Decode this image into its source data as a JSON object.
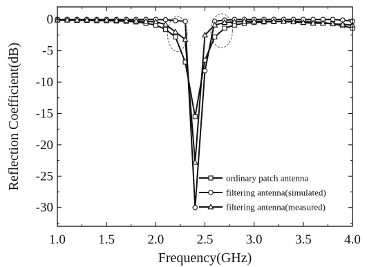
{
  "chart_data": {
    "type": "line",
    "title": "",
    "xlabel": "Frequency(GHz)",
    "ylabel": "Reflection Coefficient(dB)",
    "xlim": [
      1.0,
      4.0
    ],
    "ylim": [
      -33,
      2
    ],
    "x_ticks": [
      1.0,
      1.5,
      2.0,
      2.5,
      3.0,
      3.5,
      4.0
    ],
    "x_tick_labels": [
      "1.0",
      "1.5",
      "2.0",
      "2.5",
      "3.0",
      "3.5",
      "4.0"
    ],
    "y_ticks": [
      0,
      -5,
      -10,
      -15,
      -20,
      -25,
      -30
    ],
    "y_tick_labels": [
      "0",
      "-5",
      "-10",
      "-15",
      "-20",
      "-25",
      "-30"
    ],
    "grid": false,
    "legend_position": "bottom-right",
    "series": [
      {
        "name": "ordinary patch antenna",
        "marker": "square",
        "x": [
          1.0,
          1.1,
          1.2,
          1.3,
          1.4,
          1.5,
          1.6,
          1.7,
          1.8,
          1.9,
          2.0,
          2.1,
          2.2,
          2.3,
          2.4,
          2.5,
          2.6,
          2.7,
          2.8,
          2.9,
          3.0,
          3.1,
          3.2,
          3.3,
          3.4,
          3.5,
          3.6,
          3.7,
          3.8,
          3.9,
          4.0
        ],
        "y": [
          -0.1,
          -0.1,
          -0.15,
          -0.15,
          -0.2,
          -0.2,
          -0.25,
          -0.3,
          -0.4,
          -0.6,
          -0.9,
          -1.6,
          -2.8,
          -6.8,
          -15.5,
          -6.5,
          -2.8,
          -1.4,
          -0.9,
          -0.6,
          -0.5,
          -0.4,
          -0.35,
          -0.3,
          -0.3,
          -0.35,
          -0.4,
          -0.5,
          -0.7,
          -1.0,
          -1.4
        ]
      },
      {
        "name": "filtering antenna(simulated)",
        "marker": "circle",
        "x": [
          1.0,
          1.1,
          1.2,
          1.3,
          1.4,
          1.5,
          1.6,
          1.7,
          1.8,
          1.9,
          2.0,
          2.1,
          2.2,
          2.3,
          2.4,
          2.5,
          2.6,
          2.7,
          2.8,
          2.9,
          3.0,
          3.1,
          3.2,
          3.3,
          3.4,
          3.5,
          3.6,
          3.7,
          3.8,
          3.9,
          4.0
        ],
        "y": [
          0.0,
          0.0,
          0.0,
          0.0,
          0.0,
          0.0,
          0.0,
          0.0,
          0.0,
          0.0,
          0.0,
          -0.05,
          -0.2,
          -0.3,
          -30.0,
          -8.2,
          -0.3,
          -0.1,
          0.0,
          0.0,
          0.0,
          0.0,
          0.0,
          0.0,
          0.0,
          0.0,
          0.0,
          0.0,
          0.0,
          -0.1,
          -0.3
        ]
      },
      {
        "name": "filtering antenna(measured)",
        "marker": "triangle",
        "x": [
          1.0,
          1.1,
          1.2,
          1.3,
          1.4,
          1.5,
          1.6,
          1.7,
          1.8,
          1.9,
          2.0,
          2.1,
          2.2,
          2.3,
          2.4,
          2.5,
          2.6,
          2.7,
          2.8,
          2.9,
          3.0,
          3.1,
          3.2,
          3.3,
          3.4,
          3.5,
          3.6,
          3.7,
          3.8,
          3.9,
          4.0
        ],
        "y": [
          -0.1,
          -0.1,
          -0.1,
          -0.1,
          -0.1,
          -0.1,
          -0.15,
          -0.2,
          -0.25,
          -0.3,
          -0.4,
          -0.8,
          -2.0,
          -3.2,
          -22.8,
          -2.5,
          -0.9,
          -0.5,
          -0.4,
          -0.3,
          -0.3,
          -0.3,
          -0.3,
          -0.35,
          -0.4,
          -0.5,
          -0.6,
          -0.6,
          -0.7,
          -0.8,
          -0.9
        ]
      }
    ],
    "annotations": [
      {
        "shape": "dashed-ellipse",
        "center": [
          2.22,
          -2.3
        ],
        "radius_x": 0.1,
        "radius_y": 2.8
      },
      {
        "shape": "dashed-ellipse",
        "center": [
          2.67,
          -1.8
        ],
        "radius_x": 0.11,
        "radius_y": 2.7
      }
    ]
  }
}
